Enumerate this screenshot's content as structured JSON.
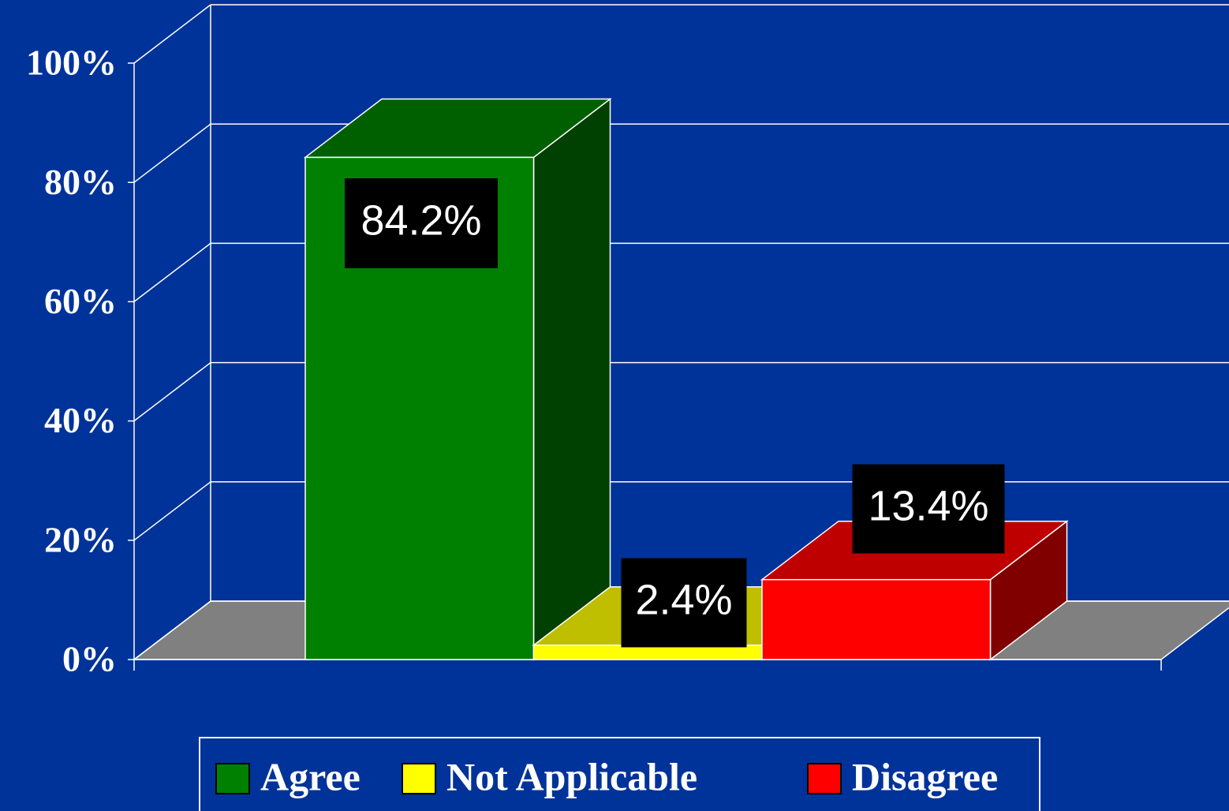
{
  "chart_data": {
    "type": "bar3d",
    "series": [
      {
        "name": "Agree",
        "color": "#008000",
        "values": [
          84.2
        ],
        "value_labels": [
          "84.2%"
        ]
      },
      {
        "name": "Not Applicable",
        "color": "#ffff00",
        "values": [
          2.4
        ],
        "value_labels": [
          "2.4%"
        ]
      },
      {
        "name": "Disagree",
        "color": "#ff0000",
        "values": [
          13.4
        ],
        "value_labels": [
          "13.4%"
        ]
      }
    ],
    "ylim": [
      0,
      100
    ],
    "yticks": [
      {
        "value": 0,
        "label": "0%"
      },
      {
        "value": 20,
        "label": "20%"
      },
      {
        "value": 40,
        "label": "40%"
      },
      {
        "value": 60,
        "label": "60%"
      },
      {
        "value": 80,
        "label": "80%"
      },
      {
        "value": 100,
        "label": "100%"
      }
    ],
    "grid": true,
    "legend": "bottom"
  }
}
